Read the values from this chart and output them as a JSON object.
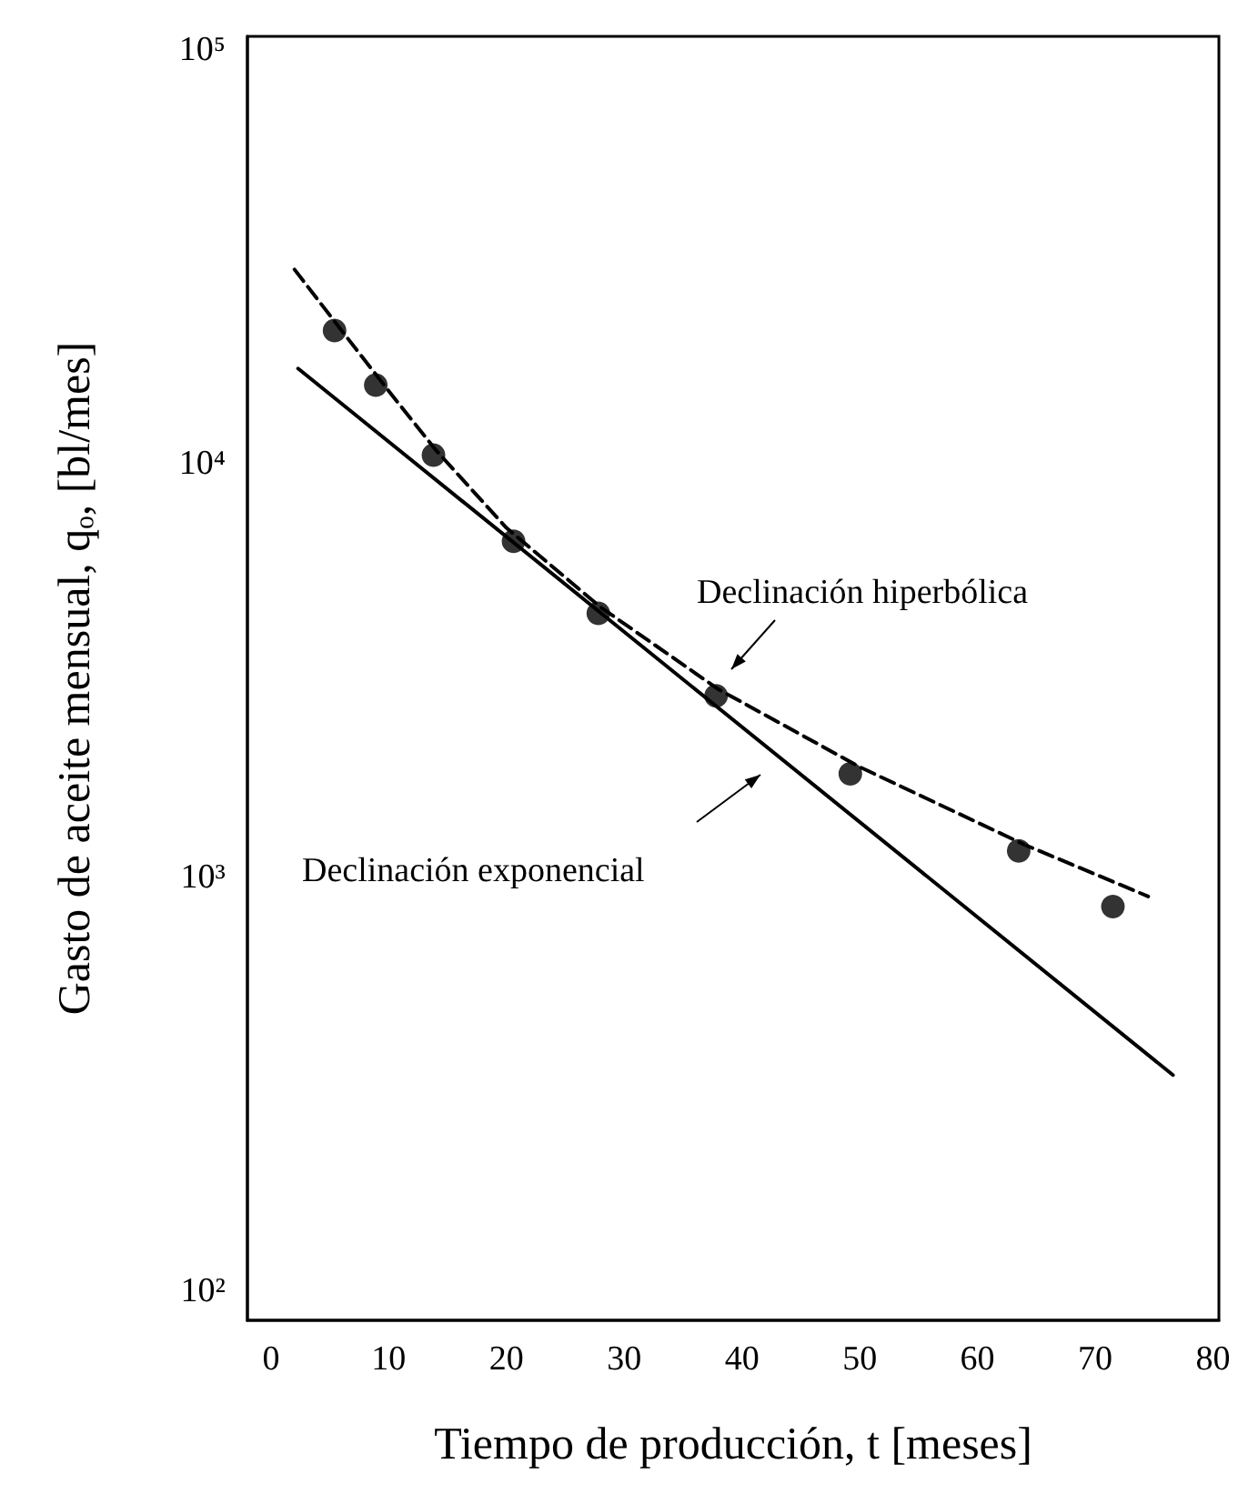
{
  "chart_data": {
    "type": "scatter",
    "xlabel": "Tiempo de producción, t [meses]",
    "ylabel": "Gasto de aceite mensual, qₒ, [bl/mes]",
    "log": "y",
    "grid": false,
    "xlim": [
      -2,
      80.5
    ],
    "xticks": [
      0,
      10,
      20,
      30,
      40,
      50,
      60,
      70,
      80
    ],
    "ylim": [
      85,
      108000
    ],
    "yticks": [
      {
        "value": 100,
        "label": "10²"
      },
      {
        "value": 1000,
        "label": "10³"
      },
      {
        "value": 10000,
        "label": "10⁴"
      },
      {
        "value": 100000,
        "label": "10⁵"
      }
    ],
    "series": [
      {
        "marker": "circle",
        "color": "#000000",
        "x": [
          5.4,
          8.9,
          13.8,
          20.6,
          27.8,
          37.8,
          49.2,
          63.5,
          71.5
        ],
        "values": [
          21000,
          15500,
          10500,
          6500,
          4350,
          2750,
          1780,
          1160,
          850
        ]
      },
      {
        "type": "line",
        "line_style": "dashed",
        "marker": "none",
        "color": "#000000",
        "x": [
          2,
          6,
          10,
          14,
          20,
          28,
          38,
          50,
          64,
          74.5
        ],
        "values": [
          29500,
          21000,
          15000,
          10800,
          7000,
          4500,
          2850,
          1850,
          1200,
          900
        ]
      },
      {
        "type": "line",
        "line_style": "solid",
        "marker": "none",
        "color": "#000000",
        "x": [
          2.3,
          76.6
        ],
        "values": [
          17000,
          333
        ]
      }
    ],
    "annotations": [
      "Declinación hiperbólica",
      "Declinación exponencial"
    ]
  }
}
